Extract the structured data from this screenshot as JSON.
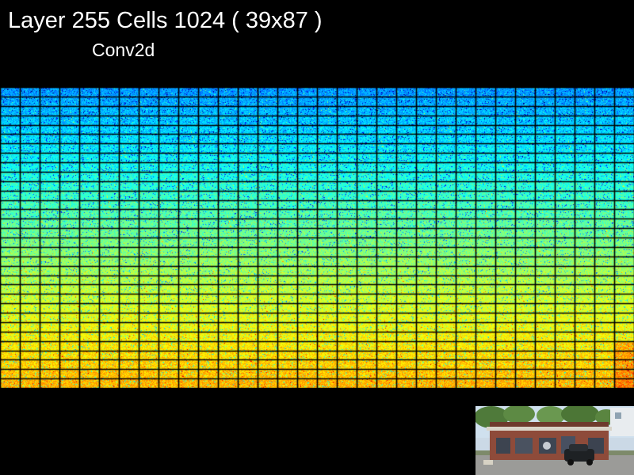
{
  "header": {
    "title": "Layer 255 Cells 1024 ( 39x87 )",
    "subtitle": "Conv2d"
  },
  "visualization": {
    "kind": "feature-map-grid",
    "columns": 32,
    "rows": 32,
    "cell_count": 1024,
    "colormap": "jet",
    "colors": {
      "background": "#000000",
      "cell_border": "#000000",
      "top_row_tone": "#2a7cf0",
      "middle_tone": "#44d98a",
      "bottom_row_tone": "#d8c03a",
      "hot_spot": "#f06a2a"
    }
  },
  "input_thumbnail": {
    "subject": "photo of a brick storefront building with a dark SUV parked in front, trees and blue sky behind",
    "icon": "input-image-icon"
  }
}
